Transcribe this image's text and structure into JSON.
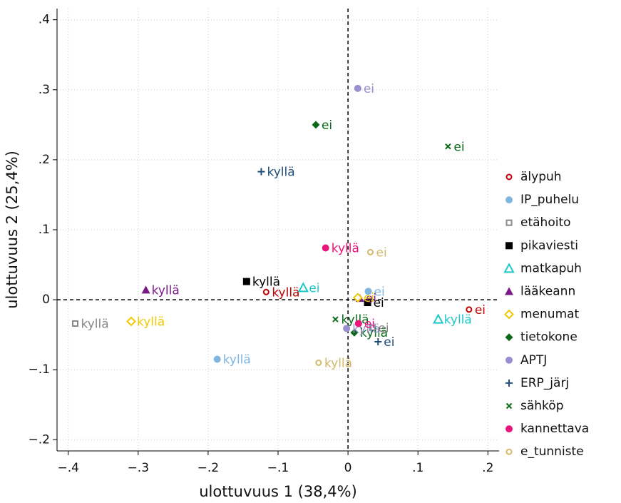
{
  "chart_data": {
    "type": "scatter",
    "xlabel": "ulottuvuus 1 (38,4%)",
    "ylabel": "ulottuvuus 2 (25,4%)",
    "xlim": [
      -0.416,
      0.216
    ],
    "ylim": [
      -0.216,
      0.416
    ],
    "xticks": [
      {
        "value": -0.4,
        "label": "−.4"
      },
      {
        "value": -0.3,
        "label": "−.3"
      },
      {
        "value": -0.2,
        "label": "−.2"
      },
      {
        "value": -0.1,
        "label": "−.1"
      },
      0,
      {
        "value": 0.1,
        "label": ".1"
      },
      {
        "value": 0.2,
        "label": ".2"
      }
    ],
    "yticks": [
      {
        "value": -0.2,
        "label": "−.2"
      },
      {
        "value": -0.1,
        "label": "−.1"
      },
      0,
      {
        "value": 0.1,
        "label": ".1"
      },
      {
        "value": 0.2,
        "label": ".2"
      },
      {
        "value": 0.3,
        "label": ".3"
      },
      {
        "value": 0.4,
        "label": ".4"
      }
    ],
    "grid": true,
    "reference_lines": {
      "x": 0,
      "y": 0
    },
    "legend": "right",
    "series": [
      {
        "name": "älypuh",
        "color": "#c00000",
        "marker": "circle-hollow",
        "x": [
          -0.117,
          0.173
        ],
        "y": [
          0.011,
          -0.014
        ],
        "labels": [
          "kyllä",
          "ei"
        ]
      },
      {
        "name": "IP_puhelu",
        "color": "#7fb6e0",
        "marker": "circle",
        "x": [
          -0.187,
          0.029
        ],
        "y": [
          -0.085,
          0.012
        ],
        "labels": [
          "kyllä",
          "ei"
        ]
      },
      {
        "name": "etähoito",
        "color": "#888888",
        "marker": "square-hollow",
        "x": [
          -0.39,
          0.035
        ],
        "y": [
          -0.034,
          -0.04
        ],
        "labels": [
          "kyllä",
          "ei"
        ]
      },
      {
        "name": "pikaviesti",
        "color": "#000000",
        "marker": "square",
        "x": [
          -0.145,
          0.028
        ],
        "y": [
          0.026,
          -0.004
        ],
        "labels": [
          "kyllä",
          "ei"
        ]
      },
      {
        "name": "matkapuh",
        "color": "#1ec8c8",
        "marker": "triangle-hollow",
        "x": [
          0.129,
          -0.064
        ],
        "y": [
          -0.028,
          0.017
        ],
        "labels": [
          "kyllä",
          "ei"
        ]
      },
      {
        "name": "lääkeann",
        "color": "#7a1a86",
        "marker": "triangle",
        "x": [
          -0.289,
          0.017
        ],
        "y": [
          0.014,
          0.002
        ],
        "labels": [
          "kyllä",
          "ei"
        ]
      },
      {
        "name": "menumat",
        "color": "#f0c800",
        "marker": "diamond-hollow",
        "x": [
          -0.31,
          0.014
        ],
        "y": [
          -0.031,
          0.003
        ],
        "labels": [
          "kyllä",
          "ei"
        ]
      },
      {
        "name": "tietokone",
        "color": "#0a6a1a",
        "marker": "diamond",
        "x": [
          0.009,
          -0.046
        ],
        "y": [
          -0.047,
          0.25
        ],
        "labels": [
          "kyllä",
          "ei"
        ]
      },
      {
        "name": "APTJ",
        "color": "#9a8fd0",
        "marker": "circle",
        "x": [
          -0.002,
          0.014
        ],
        "y": [
          -0.041,
          0.302
        ],
        "labels": [
          "kyllä",
          "ei"
        ]
      },
      {
        "name": "ERP_järj",
        "color": "#1f4e79",
        "marker": "plus",
        "x": [
          -0.124,
          0.043
        ],
        "y": [
          0.183,
          -0.06
        ],
        "labels": [
          "kyllä",
          "ei"
        ]
      },
      {
        "name": "sähköp",
        "color": "#0a6a1a",
        "marker": "x",
        "x": [
          -0.018,
          0.143
        ],
        "y": [
          -0.028,
          0.219
        ],
        "labels": [
          "kyllä",
          "ei"
        ]
      },
      {
        "name": "kannettava",
        "color": "#e8157a",
        "marker": "circle",
        "x": [
          -0.032,
          0.015
        ],
        "y": [
          0.074,
          -0.034
        ],
        "labels": [
          "kyllä",
          "ei"
        ]
      },
      {
        "name": "e_tunniste",
        "color": "#d4b96a",
        "marker": "circle-hollow",
        "x": [
          -0.042,
          0.032
        ],
        "y": [
          -0.09,
          0.068
        ],
        "labels": [
          "kyllä",
          "ei"
        ]
      }
    ]
  }
}
